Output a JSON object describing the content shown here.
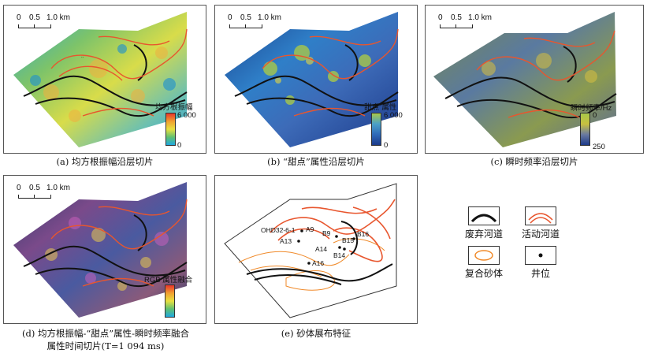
{
  "scale": {
    "zero": "0",
    "half": "0.5",
    "one": "1.0 km"
  },
  "panels": {
    "a": {
      "caption": "(a) 均方根振幅沿层切片",
      "cbar_title": "均方根振幅",
      "cbar_max": "6 000",
      "cbar_min": "0"
    },
    "b": {
      "caption": "(b) “甜点”属性沿层切片",
      "cbar_title": "“甜点”属性",
      "cbar_max": "6 000",
      "cbar_min": "0"
    },
    "c": {
      "caption": "(c) 瞬时频率沿层切片",
      "cbar_title": "瞬时频率/Hz",
      "cbar_max": "0",
      "cbar_min": "250"
    },
    "d": {
      "caption_line1": "(d) 均方根振幅-“甜点”属性-瞬时频率融合",
      "caption_line2": "属性时间切片(T=1 094 ms)",
      "cbar_title": "RGB 属性融合"
    },
    "e": {
      "caption": "(e) 砂体展布特征"
    }
  },
  "wells": [
    "OHD32-6-1",
    "A9",
    "A13",
    "B9",
    "B16",
    "B15",
    "A14",
    "B14",
    "A16"
  ],
  "legend": {
    "abandoned": "废弃河道",
    "active": "活动河道",
    "sand": "复合砂体",
    "well": "井位"
  },
  "colors": {
    "abandoned": "#111111",
    "active": "#e8562e",
    "sand": "#f08a2a"
  }
}
